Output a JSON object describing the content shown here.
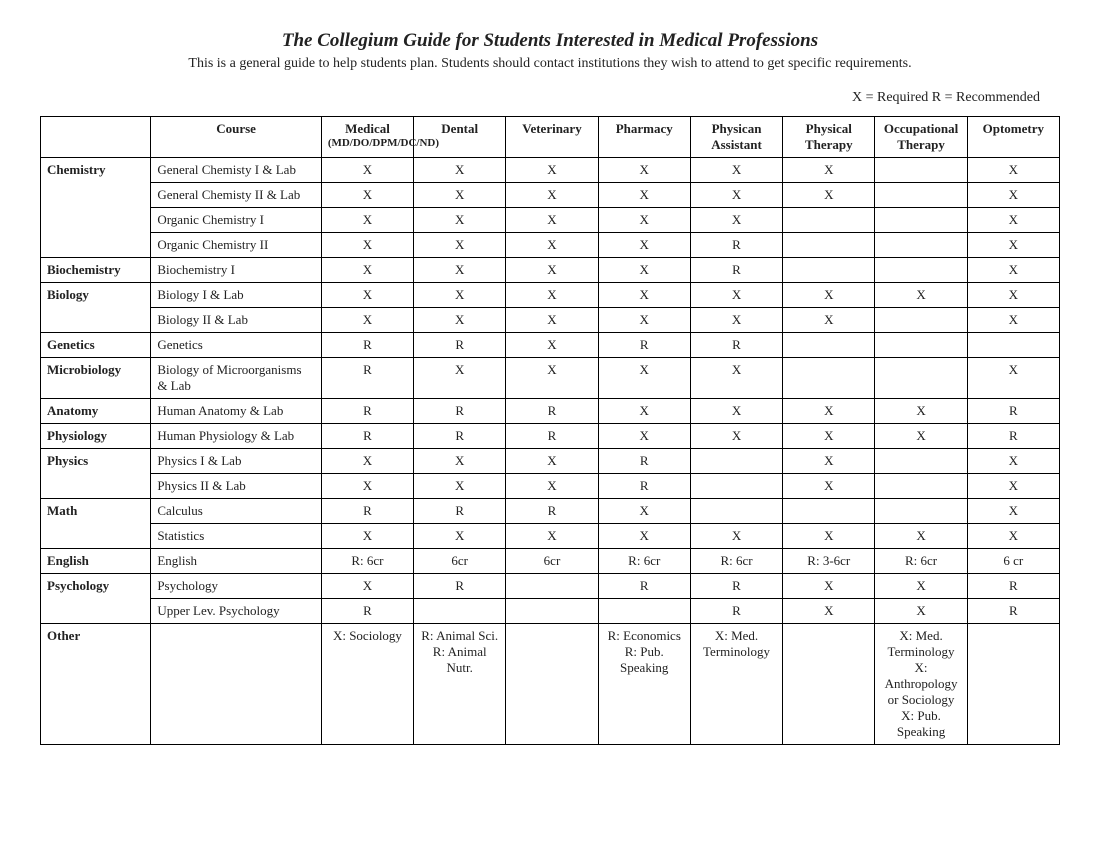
{
  "title": "The Collegium Guide for Students Interested in Medical Professions",
  "subtitle": "This is a general guide to help students plan.  Students should contact institutions they wish to attend to get specific requirements.",
  "legend": "X = Required     R = Recommended",
  "headers": {
    "blank": "",
    "course": "Course",
    "medical": "Medical",
    "medical_sub": "(MD/DO/DPM/DC/ND)",
    "dental": "Dental",
    "veterinary": "Veterinary",
    "pharmacy": "Pharmacy",
    "pa": "Physican Assistant",
    "pt": "Physical Therapy",
    "ot": "Occupational Therapy",
    "optometry": "Optometry"
  },
  "rows": [
    {
      "category": "Chemistry",
      "course": "General Chemisty I & Lab",
      "cells": [
        "X",
        "X",
        "X",
        "X",
        "X",
        "X",
        "",
        "X"
      ]
    },
    {
      "category": "",
      "course": "General Chemisty II & Lab",
      "cells": [
        "X",
        "X",
        "X",
        "X",
        "X",
        "X",
        "",
        "X"
      ]
    },
    {
      "category": "",
      "course": "Organic Chemistry I",
      "cells": [
        "X",
        "X",
        "X",
        "X",
        "X",
        "",
        "",
        "X"
      ]
    },
    {
      "category": "",
      "course": "Organic Chemistry II",
      "cells": [
        "X",
        "X",
        "X",
        "X",
        "R",
        "",
        "",
        "X"
      ]
    },
    {
      "category": "Biochemistry",
      "course": "Biochemistry I",
      "cells": [
        "X",
        "X",
        "X",
        "X",
        "R",
        "",
        "",
        "X"
      ]
    },
    {
      "category": "Biology",
      "course": "Biology I & Lab",
      "cells": [
        "X",
        "X",
        "X",
        "X",
        "X",
        "X",
        "X",
        "X"
      ]
    },
    {
      "category": "",
      "course": "Biology II & Lab",
      "cells": [
        "X",
        "X",
        "X",
        "X",
        "X",
        "X",
        "",
        "X"
      ]
    },
    {
      "category": "Genetics",
      "course": "Genetics",
      "cells": [
        "R",
        "R",
        "X",
        "R",
        "R",
        "",
        "",
        ""
      ]
    },
    {
      "category": "Microbiology",
      "course": "Biology of Microorganisms & Lab",
      "cells": [
        "R",
        "X",
        "X",
        "X",
        "X",
        "",
        "",
        "X"
      ]
    },
    {
      "category": "Anatomy",
      "course": "Human Anatomy & Lab",
      "cells": [
        "R",
        "R",
        "R",
        "X",
        "X",
        "X",
        "X",
        "R"
      ]
    },
    {
      "category": "Physiology",
      "course": "Human Physiology & Lab",
      "cells": [
        "R",
        "R",
        "R",
        "X",
        "X",
        "X",
        "X",
        "R"
      ]
    },
    {
      "category": "Physics",
      "course": "Physics I & Lab",
      "cells": [
        "X",
        "X",
        "X",
        "R",
        "",
        "X",
        "",
        "X"
      ]
    },
    {
      "category": "",
      "course": "Physics II & Lab",
      "cells": [
        "X",
        "X",
        "X",
        "R",
        "",
        "X",
        "",
        "X"
      ]
    },
    {
      "category": "Math",
      "course": "Calculus",
      "cells": [
        "R",
        "R",
        "R",
        "X",
        "",
        "",
        "",
        "X"
      ]
    },
    {
      "category": "",
      "course": "Statistics",
      "cells": [
        "X",
        "X",
        "X",
        "X",
        "X",
        "X",
        "X",
        "X"
      ]
    },
    {
      "category": "English",
      "course": "English",
      "cells": [
        "R: 6cr",
        "6cr",
        "6cr",
        "R: 6cr",
        "R: 6cr",
        "R: 3-6cr",
        "R: 6cr",
        "6 cr"
      ]
    },
    {
      "category": "Psychology",
      "course": "Psychology",
      "cells": [
        "X",
        "R",
        "",
        "R",
        "R",
        "X",
        "X",
        "R"
      ]
    },
    {
      "category": "",
      "course": "Upper Lev. Psychology",
      "cells": [
        "R",
        "",
        "",
        "",
        "R",
        "X",
        "X",
        "R"
      ]
    },
    {
      "category": "Other",
      "course": "",
      "cells": [
        "X: Sociology",
        "R: Animal Sci.\nR: Animal Nutr.",
        "",
        "R: Economics\nR: Pub. Speaking",
        "X: Med. Terminology",
        "",
        "X: Med. Terminology\nX: Anthropology or Sociology\nX: Pub. Speaking",
        ""
      ]
    }
  ]
}
